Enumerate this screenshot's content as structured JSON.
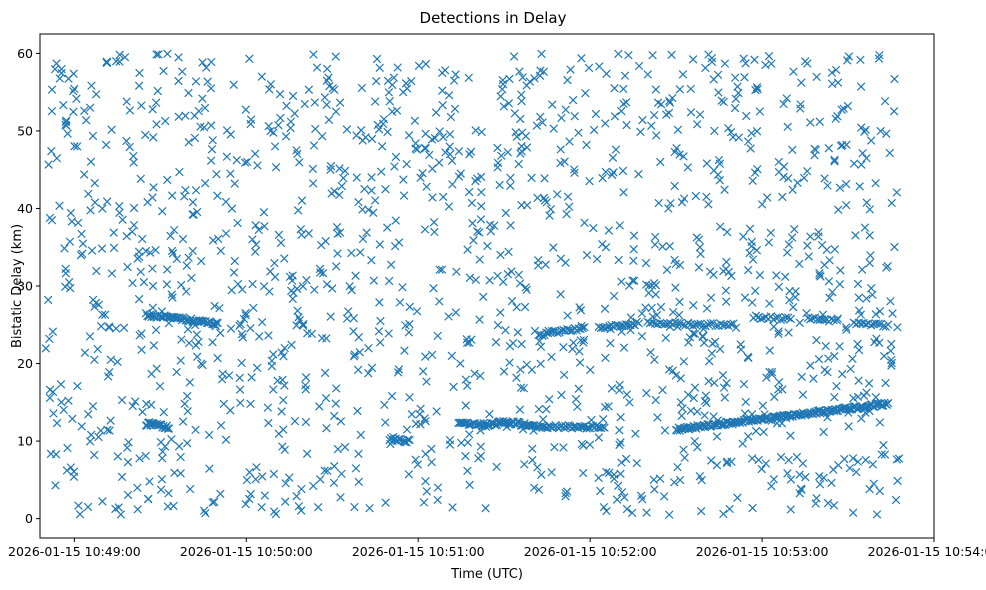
{
  "chart_data": {
    "type": "scatter",
    "title": "Detections in Delay",
    "xlabel": "Time (UTC)",
    "ylabel": "Bistatic Delay (km)",
    "x_unit": "seconds after 2026-01-15 10:49:00",
    "xlim": [
      -12,
      300
    ],
    "ylim": [
      -2.5,
      62.5
    ],
    "x_ticks": [
      {
        "value": 0,
        "label": "2026-01-15 10:49:00"
      },
      {
        "value": 60,
        "label": "2026-01-15 10:50:00"
      },
      {
        "value": 120,
        "label": "2026-01-15 10:51:00"
      },
      {
        "value": 180,
        "label": "2026-01-15 10:52:00"
      },
      {
        "value": 240,
        "label": "2026-01-15 10:53:00"
      },
      {
        "value": 300,
        "label": "2026-01-15 10:54:00"
      }
    ],
    "y_ticks": [
      0,
      10,
      20,
      30,
      40,
      50,
      60
    ],
    "grid": false,
    "legend": "none",
    "marker": "x",
    "color": "#1f77b4",
    "clutter_detection_count": 1500,
    "clutter_t_range": [
      -10,
      288
    ],
    "clutter_delay_range": [
      0.5,
      60
    ],
    "tracks": [
      {
        "start": [
          25,
          26.3
        ],
        "end": [
          50,
          25.2
        ],
        "count": 55
      },
      {
        "start": [
          25,
          12.2
        ],
        "end": [
          33,
          11.8
        ],
        "count": 22
      },
      {
        "start": [
          110,
          10.2
        ],
        "end": [
          117,
          10.0
        ],
        "count": 14
      },
      {
        "start": [
          134,
          12.2
        ],
        "end": [
          148,
          12.1
        ],
        "count": 28
      },
      {
        "start": [
          148,
          12.6
        ],
        "end": [
          160,
          12.0
        ],
        "count": 30
      },
      {
        "start": [
          160,
          11.9
        ],
        "end": [
          185,
          11.8
        ],
        "count": 45
      },
      {
        "start": [
          162,
          23.7
        ],
        "end": [
          178,
          24.6
        ],
        "count": 25
      },
      {
        "start": [
          183,
          24.6
        ],
        "end": [
          197,
          25.2
        ],
        "count": 20
      },
      {
        "start": [
          200,
          25.2
        ],
        "end": [
          230,
          25.0
        ],
        "count": 35
      },
      {
        "start": [
          237,
          26.0
        ],
        "end": [
          250,
          25.8
        ],
        "count": 16
      },
      {
        "start": [
          256,
          25.8
        ],
        "end": [
          265,
          25.5
        ],
        "count": 12
      },
      {
        "start": [
          272,
          25.2
        ],
        "end": [
          284,
          24.9
        ],
        "count": 15
      },
      {
        "start": [
          210,
          11.5
        ],
        "end": [
          284,
          14.8
        ],
        "count": 170
      }
    ]
  }
}
